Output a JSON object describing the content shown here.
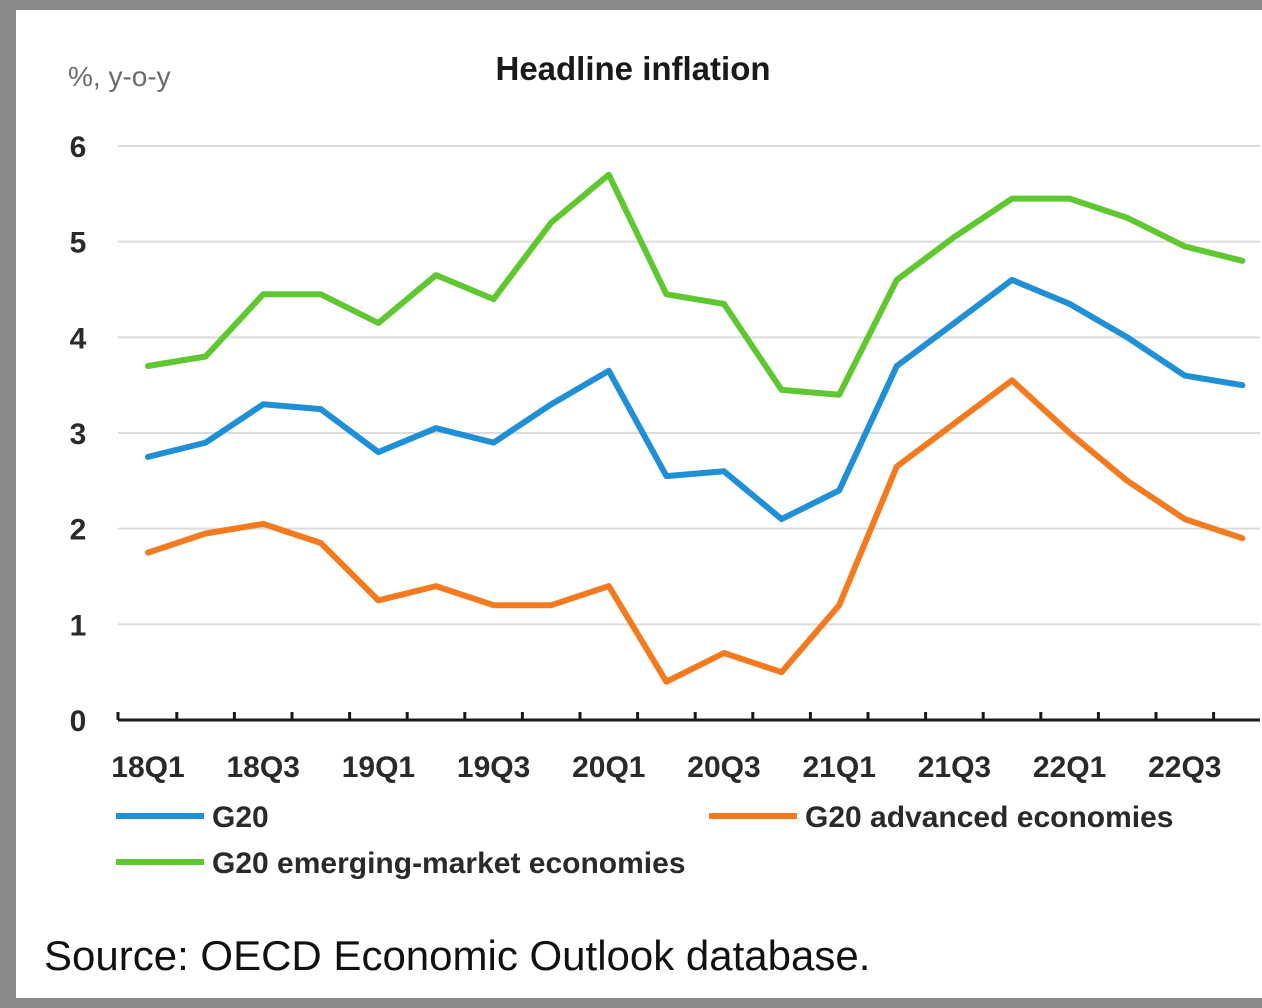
{
  "chart_data": {
    "type": "line",
    "title": "Headline inflation",
    "ylabel": "%, y-o-y",
    "xlabel": "",
    "ylim": [
      0,
      6
    ],
    "yticks": [
      "0",
      "1",
      "2",
      "3",
      "4",
      "5",
      "6"
    ],
    "x": [
      "18Q1",
      "18Q2",
      "18Q3",
      "18Q4",
      "19Q1",
      "19Q2",
      "19Q3",
      "19Q4",
      "20Q1",
      "20Q2",
      "20Q3",
      "20Q4",
      "21Q1",
      "21Q2",
      "21Q3",
      "21Q4",
      "22Q1",
      "22Q2",
      "22Q3",
      "22Q4"
    ],
    "xtick_labels": [
      "18Q1",
      "18Q3",
      "19Q1",
      "19Q3",
      "20Q1",
      "20Q3",
      "21Q1",
      "21Q3",
      "22Q1",
      "22Q3"
    ],
    "grid": true,
    "legend_position": "bottom",
    "series": [
      {
        "name": "G20",
        "color": "#1f8fd6",
        "values": [
          2.75,
          2.9,
          3.3,
          3.25,
          2.8,
          3.05,
          2.9,
          3.3,
          3.65,
          2.55,
          2.6,
          2.1,
          2.4,
          3.7,
          4.15,
          4.6,
          4.35,
          4.0,
          3.6,
          3.5
        ]
      },
      {
        "name": "G20 advanced economies",
        "color": "#f47a20",
        "values": [
          1.75,
          1.95,
          2.05,
          1.85,
          1.25,
          1.4,
          1.2,
          1.2,
          1.4,
          0.4,
          0.7,
          0.5,
          1.2,
          2.65,
          3.1,
          3.55,
          3.0,
          2.5,
          2.1,
          1.9
        ]
      },
      {
        "name": "G20 emerging-market economies",
        "color": "#5fc72f",
        "values": [
          3.7,
          3.8,
          4.45,
          4.45,
          4.15,
          4.65,
          4.4,
          5.2,
          5.7,
          4.45,
          4.35,
          3.45,
          3.4,
          4.6,
          5.05,
          5.45,
          5.45,
          5.25,
          4.95,
          4.8
        ]
      }
    ]
  },
  "source": "Source: OECD Economic Outlook database."
}
